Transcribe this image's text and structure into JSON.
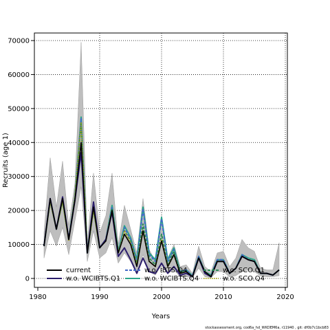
{
  "chart_data": {
    "type": "line",
    "title": "",
    "xlabel": "Years",
    "ylabel": "Recruits (age 1)",
    "xlim": [
      1980,
      2020
    ],
    "ylim": [
      0,
      70000
    ],
    "xticks": [
      1980,
      1990,
      2000,
      2010,
      2020
    ],
    "yticks": [
      0,
      10000,
      20000,
      30000,
      40000,
      50000,
      60000,
      70000
    ],
    "grid": true,
    "legend_position": "bottom",
    "x": [
      1981,
      1982,
      1983,
      1984,
      1985,
      1986,
      1987,
      1988,
      1989,
      1990,
      1991,
      1992,
      1993,
      1994,
      1995,
      1996,
      1997,
      1998,
      1999,
      2000,
      2001,
      2002,
      2003,
      2004,
      2005,
      2006,
      2007,
      2008,
      2009,
      2010,
      2011,
      2012,
      2013,
      2014,
      2015,
      2016,
      2017,
      2018,
      2019
    ],
    "band": {
      "lower": [
        6000,
        14000,
        9500,
        15000,
        7000,
        17000,
        27000,
        5000,
        14000,
        6000,
        7500,
        12000,
        4500,
        7500,
        5000,
        1500,
        7000,
        2000,
        1000,
        4000,
        1500,
        2500,
        500,
        500,
        200,
        3000,
        500,
        200,
        2000,
        2000,
        400,
        800,
        2000,
        2500,
        2000,
        700,
        500,
        500,
        800
      ],
      "upper": [
        13500,
        35500,
        21000,
        34500,
        15500,
        28000,
        69500,
        10500,
        31000,
        13500,
        18500,
        31000,
        10000,
        21500,
        14500,
        7500,
        23500,
        8500,
        5000,
        18500,
        6000,
        10000,
        3500,
        4000,
        1500,
        9500,
        3500,
        2000,
        7500,
        8000,
        3500,
        6000,
        11500,
        9000,
        8000,
        3000,
        2500,
        2500,
        10500
      ]
    },
    "series": [
      {
        "name": "current",
        "color": "#000000",
        "dash": "solid",
        "values": [
          9500,
          23500,
          14500,
          23500,
          11500,
          23000,
          40000,
          7500,
          21000,
          9000,
          11000,
          20000,
          7500,
          13000,
          10000,
          3500,
          14000,
          5000,
          3500,
          11000,
          3500,
          7000,
          1500,
          2000,
          500,
          6000,
          2000,
          500,
          5000,
          5000,
          1500,
          3000,
          6500,
          5500,
          5000,
          1500,
          1500,
          1000,
          2500
        ]
      },
      {
        "name": "w.o. WCIBTS.Q1",
        "color": "#2b1d6b",
        "dash": "solid",
        "values": [
          9500,
          23500,
          14500,
          24000,
          11500,
          23000,
          37000,
          7500,
          22500,
          9000,
          11500,
          19500,
          6500,
          9000,
          5500,
          1500,
          6000,
          2000,
          1500,
          4500,
          1500,
          3500,
          1000,
          1500,
          500,
          6000,
          1500,
          500,
          5000,
          5000,
          1500,
          3000,
          6500,
          5500,
          5000,
          1500,
          1500,
          1000,
          2500
        ]
      },
      {
        "name": "w.o. IBTS.Q4",
        "color": "#4169c8",
        "dash": "dashed",
        "values": [
          9500,
          23500,
          14500,
          23500,
          11500,
          24000,
          47000,
          7500,
          20500,
          9000,
          11500,
          21000,
          7500,
          15000,
          11500,
          5000,
          20500,
          7000,
          5000,
          17500,
          5000,
          8500,
          2000,
          2500,
          700,
          6500,
          2000,
          1000,
          5500,
          5500,
          1500,
          3000,
          7000,
          5500,
          5000,
          1500,
          1500,
          1000,
          2500
        ]
      },
      {
        "name": "w.o. WCIBTS.Q4",
        "color": "#2aa58a",
        "dash": "solid",
        "values": [
          9500,
          23000,
          14500,
          23000,
          11500,
          24000,
          47500,
          7500,
          21000,
          9000,
          11500,
          21500,
          8000,
          15500,
          12000,
          5500,
          21000,
          7500,
          5500,
          18000,
          5500,
          9000,
          2000,
          2500,
          800,
          6500,
          2000,
          1000,
          5500,
          5500,
          1500,
          3000,
          7000,
          6000,
          5500,
          1500,
          1500,
          1000,
          2500
        ]
      },
      {
        "name": "w.o. SCO.Q1",
        "color": "#2e8b57",
        "dash": "dashed",
        "values": [
          9500,
          23000,
          14500,
          23000,
          11500,
          24000,
          46000,
          7500,
          20500,
          9000,
          11500,
          20500,
          7500,
          14000,
          11000,
          4500,
          16000,
          6000,
          4000,
          13000,
          4000,
          8000,
          2000,
          2000,
          600,
          6000,
          2000,
          800,
          5000,
          5000,
          1500,
          3000,
          6500,
          5500,
          5000,
          1500,
          1500,
          1000,
          2500
        ]
      },
      {
        "name": "w.o. SCO.Q4",
        "color": "#a6a11e",
        "dash": "dotted",
        "values": [
          9500,
          22500,
          14500,
          22500,
          11000,
          24000,
          46000,
          7500,
          20000,
          9000,
          11500,
          20000,
          7500,
          14000,
          10500,
          4000,
          14000,
          5000,
          3500,
          11500,
          3500,
          7000,
          1500,
          2000,
          500,
          6000,
          2000,
          500,
          5000,
          5000,
          1500,
          3000,
          6500,
          5500,
          5000,
          1500,
          1500,
          1000,
          2500
        ]
      }
    ],
    "band_color": "#bebebe"
  },
  "legend": {
    "items": [
      "current",
      "w.o. WCIBTS.Q1",
      "w.o. IBTS.Q4",
      "w.o. WCIBTS.Q4",
      "w.o. SCO.Q1",
      "w.o. SCO.Q4"
    ]
  },
  "footer": {
    "text": "stockassessment.org,  cod6a_hd_WKDEM6a, r11940 ,  git: df0b7c1bcb83"
  }
}
